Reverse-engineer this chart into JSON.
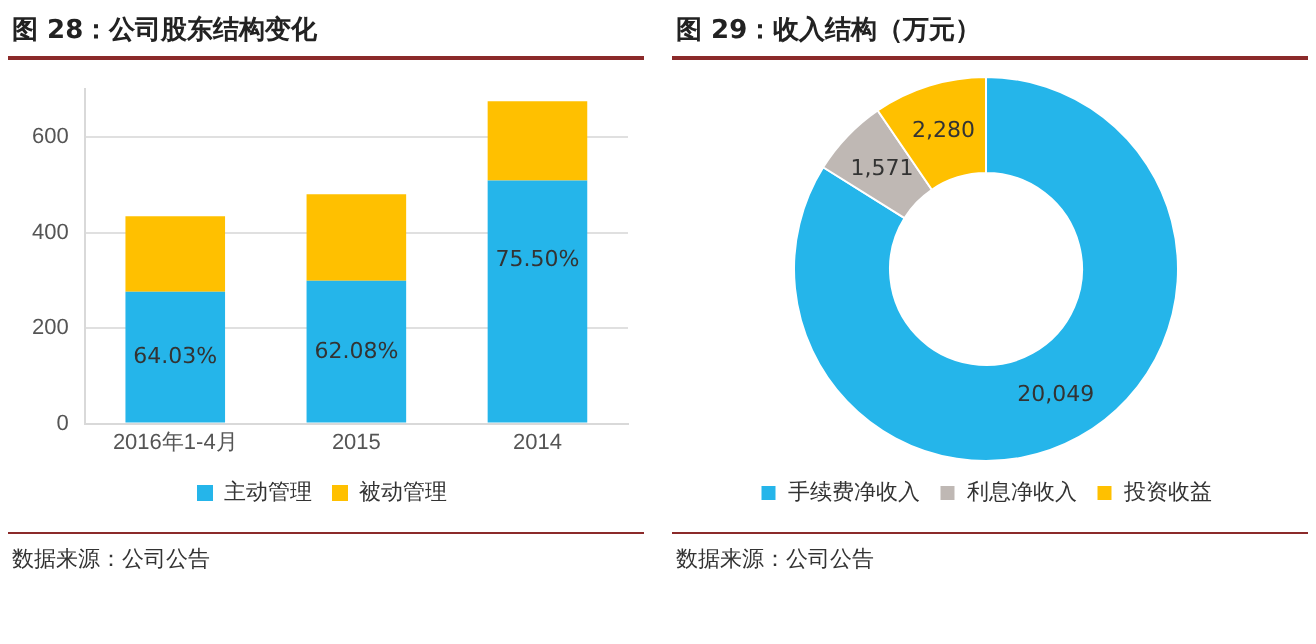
{
  "chart_data": [
    {
      "type": "bar",
      "title": "图 28：公司股东结构变化",
      "categories": [
        "2016年1-4月",
        "2015",
        "2014"
      ],
      "stacked": true,
      "ylim": [
        0,
        700
      ],
      "yticks": [
        0,
        200,
        400,
        600
      ],
      "grid": "y",
      "legend": "bottom",
      "series": [
        {
          "name": "主动管理",
          "color": "#25b5ea",
          "values": [
            276,
            299,
            509
          ]
        },
        {
          "name": "被动管理",
          "color": "#ffc000",
          "values": [
            158,
            181,
            166
          ]
        }
      ],
      "annotations": [
        {
          "text": "64.03%",
          "x": "2016年1-4月",
          "y": 276
        },
        {
          "text": "62.08%",
          "x": "2015",
          "y": 299
        },
        {
          "text": "75.50%",
          "x": "2014",
          "y": 509
        },
        "数据来源：公司公告"
      ]
    },
    {
      "type": "donut",
      "title": "图 29：收入结构（万元）",
      "categories": [
        "手续费净收入",
        "利息净收入",
        "投资收益"
      ],
      "values": [
        20049,
        1571,
        2280
      ],
      "colors": [
        "#25b5ea",
        "#bfb8b4",
        "#ffc000"
      ],
      "value_labels": [
        "20,049",
        "1,571",
        "2,280"
      ],
      "legend": "bottom",
      "annotations": [
        "数据来源：公司公告"
      ]
    }
  ]
}
